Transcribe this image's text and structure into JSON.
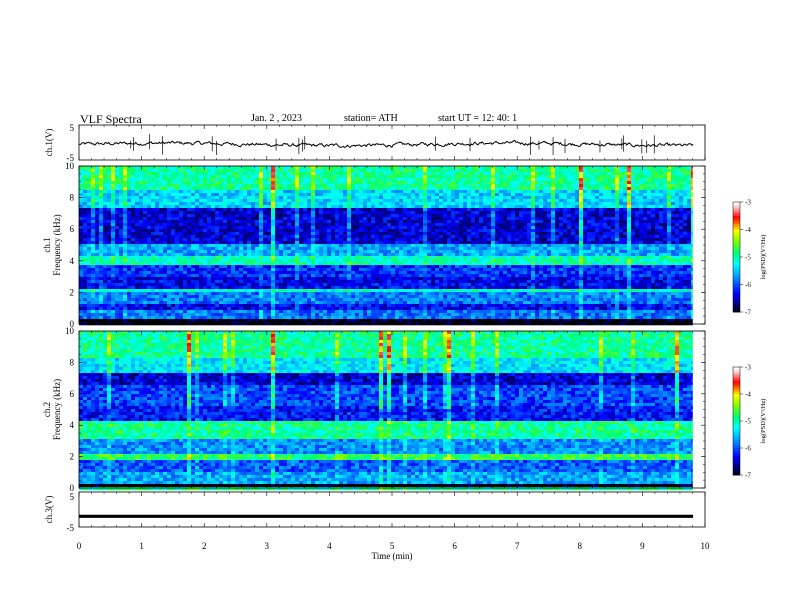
{
  "header": {
    "title": "VLF  Spectra",
    "date": "Jan.  2  , 2023",
    "station": "station= ATH",
    "start": "start  UT  =    12: 40: 1"
  },
  "chart_data": [
    {
      "type": "line",
      "panel": "ch1-waveform",
      "ylabel": "ch.1(V)",
      "ylim": [
        -5,
        5
      ],
      "yticks": [
        "5",
        "-5"
      ],
      "xlim": [
        0,
        10
      ],
      "line_color": "#000000"
    },
    {
      "type": "heatmap",
      "panel": "ch1-spectrogram",
      "ylabel": "ch.1\nFrequency (kHz)",
      "ylim": [
        0,
        10
      ],
      "yticks": [
        "0",
        "2",
        "4",
        "6",
        "8",
        "10"
      ],
      "xlim": [
        0,
        10
      ],
      "data_end_min": 9.8,
      "colorbar": {
        "label": "log(PSD)(V²/Hz)",
        "ticks": [
          "-3",
          "-4",
          "-5",
          "-6",
          "-7"
        ],
        "range": [
          -7,
          -3
        ]
      },
      "bands": [
        {
          "from": 0.0,
          "to": 0.3,
          "level": -7.0
        },
        {
          "from": 0.3,
          "to": 0.8,
          "level": -5.8
        },
        {
          "from": 0.8,
          "to": 1.3,
          "level": -6.3
        },
        {
          "from": 1.3,
          "to": 2.0,
          "level": -5.8
        },
        {
          "from": 2.0,
          "to": 2.3,
          "level": -5.1
        },
        {
          "from": 2.3,
          "to": 3.0,
          "level": -6.3
        },
        {
          "from": 3.0,
          "to": 3.8,
          "level": -6.1
        },
        {
          "from": 3.8,
          "to": 4.3,
          "level": -5.0
        },
        {
          "from": 4.3,
          "to": 5.0,
          "level": -5.6
        },
        {
          "from": 5.0,
          "to": 7.3,
          "level": -6.4
        },
        {
          "from": 7.3,
          "to": 8.5,
          "level": -5.4
        },
        {
          "from": 8.5,
          "to": 10.0,
          "level": -4.9
        }
      ]
    },
    {
      "type": "heatmap",
      "panel": "ch2-spectrogram",
      "ylabel": "ch.2\nFrequency (kHz)",
      "ylim": [
        0,
        10
      ],
      "yticks": [
        "0",
        "2",
        "4",
        "6",
        "8",
        "10"
      ],
      "xlim": [
        0,
        10
      ],
      "data_end_min": 9.8,
      "colorbar": {
        "label": "log(PSD)(V²/Hz)",
        "ticks": [
          "-3",
          "-4",
          "-5",
          "-6",
          "-7"
        ],
        "range": [
          -7,
          -3
        ]
      },
      "bands": [
        {
          "from": 0.0,
          "to": 0.3,
          "level": -7.0
        },
        {
          "from": 0.3,
          "to": 1.0,
          "level": -5.6
        },
        {
          "from": 1.0,
          "to": 1.8,
          "level": -5.9
        },
        {
          "from": 1.8,
          "to": 2.2,
          "level": -4.7
        },
        {
          "from": 2.2,
          "to": 3.2,
          "level": -5.7
        },
        {
          "from": 3.2,
          "to": 4.3,
          "level": -4.9
        },
        {
          "from": 4.3,
          "to": 5.3,
          "level": -6.2
        },
        {
          "from": 5.3,
          "to": 6.5,
          "level": -6.0
        },
        {
          "from": 6.5,
          "to": 7.3,
          "level": -6.4
        },
        {
          "from": 7.3,
          "to": 8.3,
          "level": -5.3
        },
        {
          "from": 8.3,
          "to": 10.0,
          "level": -4.9
        }
      ]
    },
    {
      "type": "line",
      "panel": "ch3-waveform",
      "ylabel": "ch.3(V)",
      "ylim": [
        -5,
        5
      ],
      "yticks": [
        "5",
        "-5"
      ],
      "xlim": [
        0,
        10
      ],
      "xlabel": "Time  (min)",
      "xticks": [
        "0",
        "1",
        "2",
        "3",
        "4",
        "5",
        "6",
        "7",
        "8",
        "9",
        "10"
      ],
      "constant_value": -2.2,
      "line_color": "#000000"
    }
  ]
}
